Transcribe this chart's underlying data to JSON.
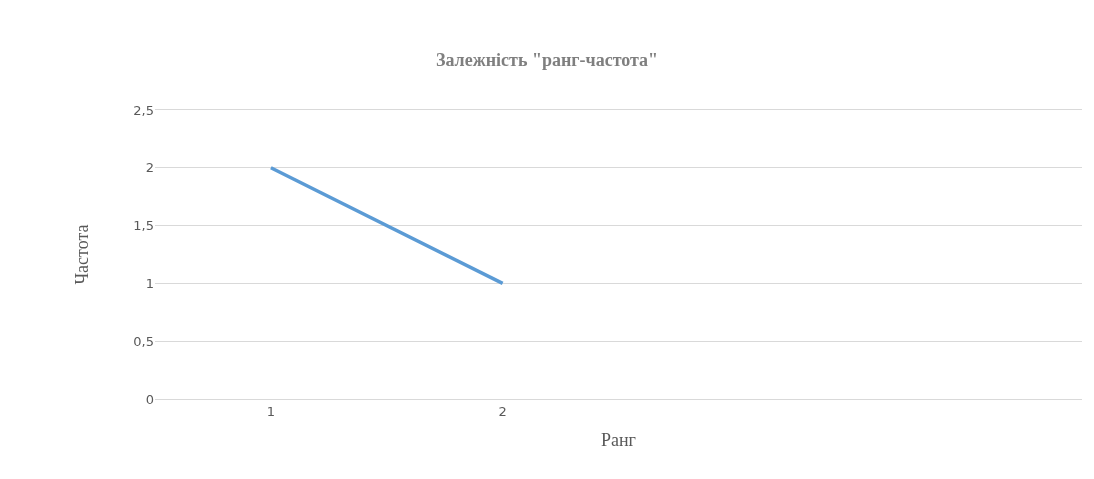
{
  "chart_data": {
    "type": "line",
    "title": "Залежність \"ранг-частота\"",
    "xlabel": "Ранг",
    "ylabel": "Частота",
    "categories": [
      "1",
      "2",
      null,
      null
    ],
    "series": [
      {
        "color": "#5b9bd5",
        "values": [
          2,
          1,
          null,
          null
        ]
      }
    ],
    "ylim": [
      0,
      2.5
    ],
    "yticks": [
      0,
      {
        "value": 0.5,
        "label": "0,5"
      },
      1,
      {
        "value": 1.5,
        "label": "1,5"
      },
      2,
      {
        "value": 2.5,
        "label": "2,5"
      }
    ],
    "grid": "y",
    "marker": "none",
    "line_style": "solid"
  }
}
